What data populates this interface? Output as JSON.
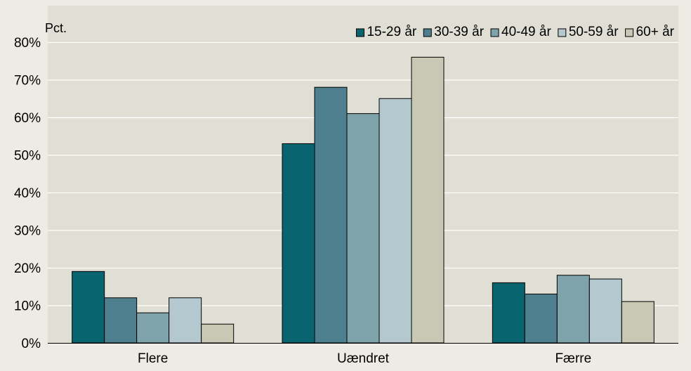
{
  "chart_data": {
    "type": "bar",
    "ylabel": "Pct.",
    "ylim": [
      0,
      80
    ],
    "y_ticks": [
      0,
      10,
      20,
      30,
      40,
      50,
      60,
      70,
      80
    ],
    "y_tick_labels": [
      "0%",
      "10%",
      "20%",
      "30%",
      "40%",
      "50%",
      "60%",
      "70%",
      "80%"
    ],
    "categories": [
      "Flere",
      "Uændret",
      "Færre"
    ],
    "series": [
      {
        "name": "15-29 år",
        "color": "#08646e",
        "values": [
          19,
          53,
          16
        ]
      },
      {
        "name": "30-39 år",
        "color": "#4e7f8e",
        "values": [
          12,
          68,
          13
        ]
      },
      {
        "name": "40-49 år",
        "color": "#7ea3ab",
        "values": [
          8,
          61,
          18
        ]
      },
      {
        "name": "50-59 år",
        "color": "#b3c8cf",
        "values": [
          12,
          65,
          17
        ]
      },
      {
        "name": "60+ år",
        "color": "#c9c8b4",
        "values": [
          5,
          76,
          11
        ]
      }
    ],
    "grid": true,
    "legend_position": "top-right",
    "plot_background": "#e0dfd5",
    "page_background": "#edebe3"
  }
}
